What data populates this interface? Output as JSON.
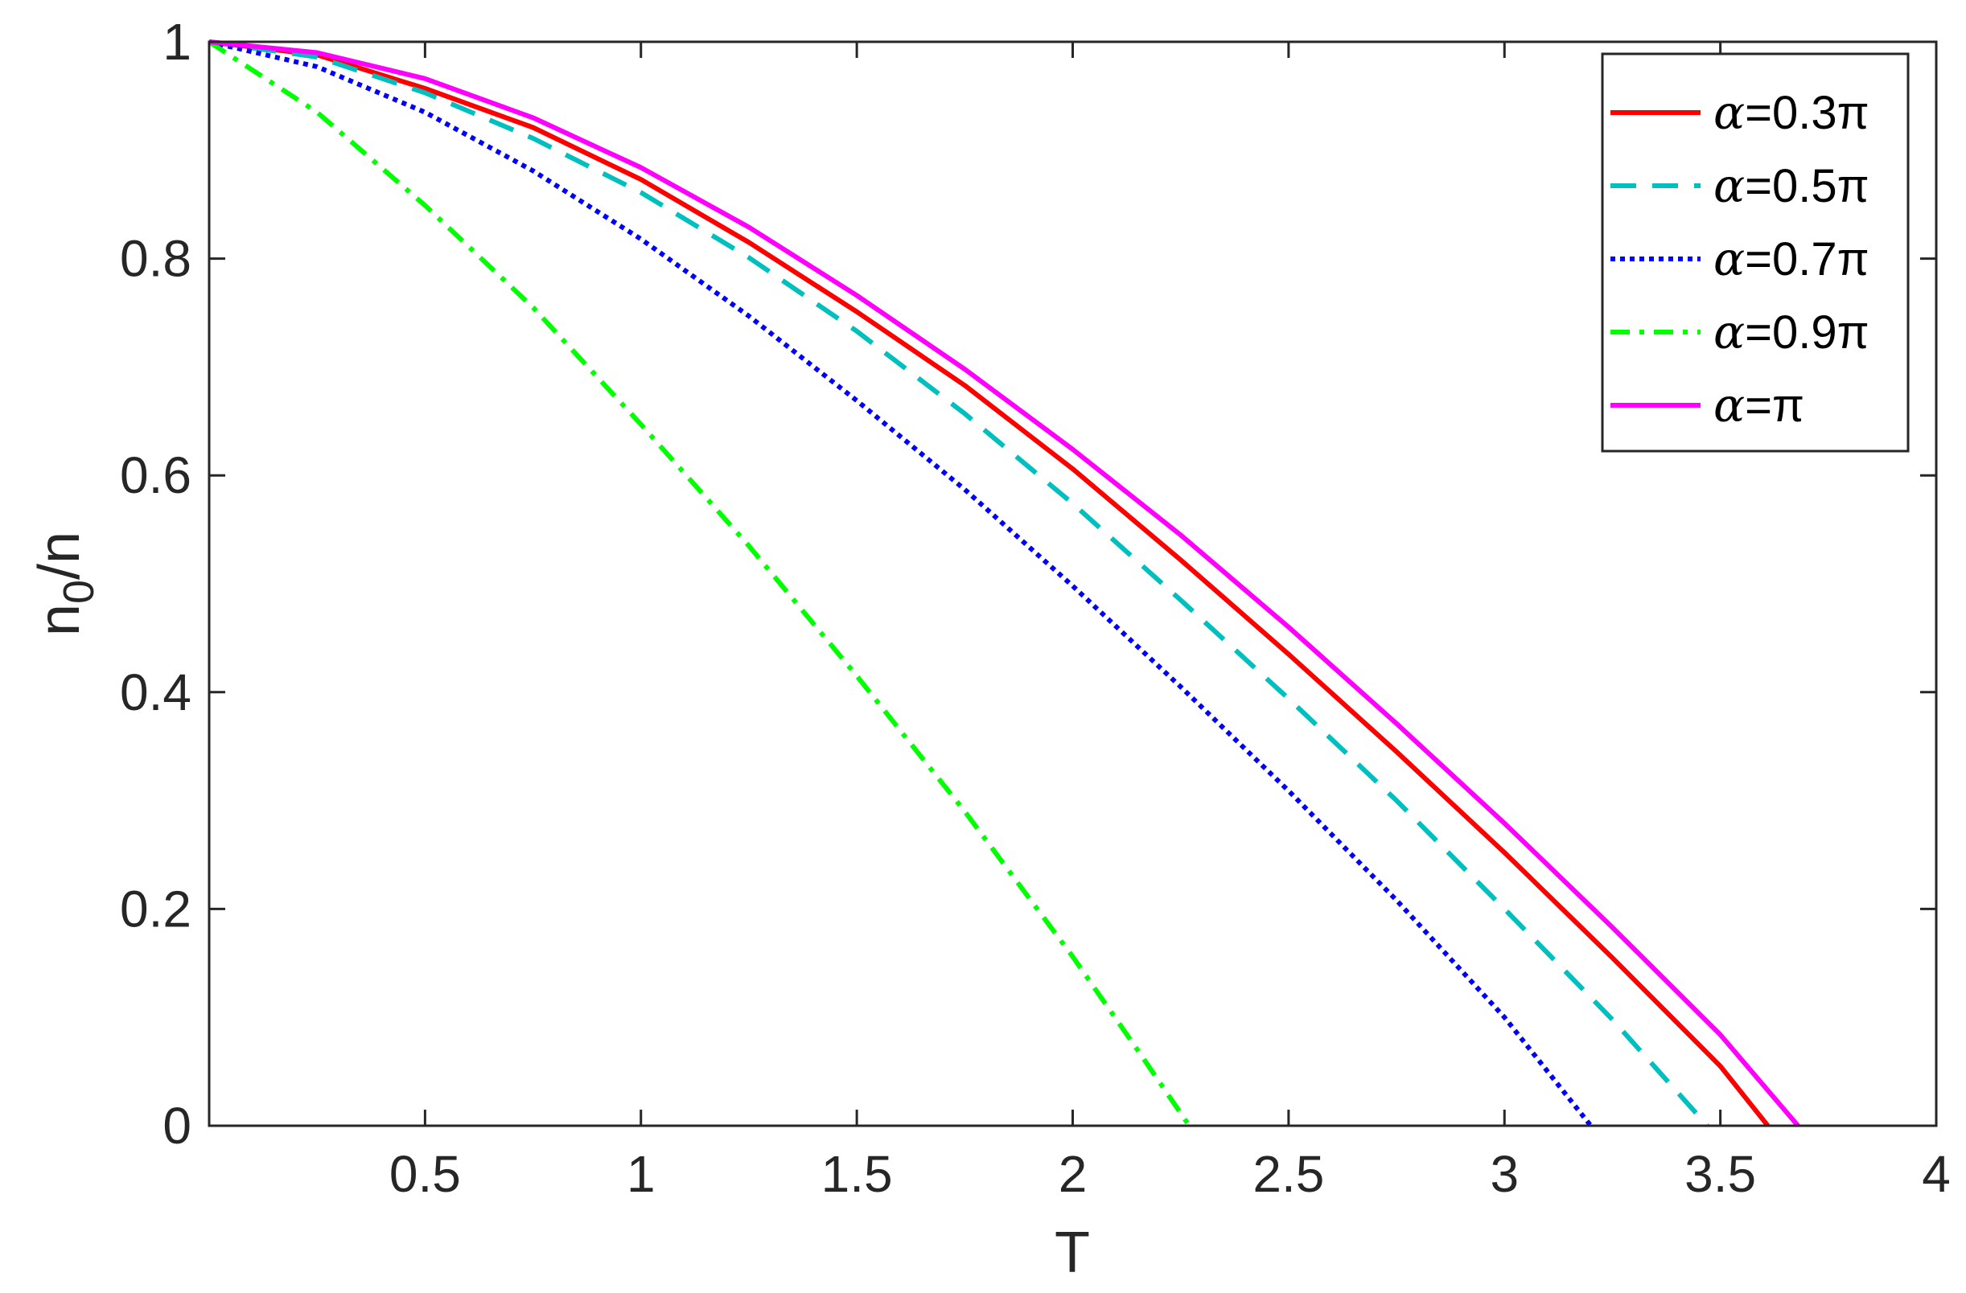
{
  "chart_data": {
    "type": "line",
    "title": "",
    "xlabel": "T",
    "ylabel": "n0/n",
    "ylabel_parts": {
      "base": "n",
      "sub": "0",
      "rest": "/n"
    },
    "xlim": [
      0,
      4
    ],
    "ylim": [
      0,
      1
    ],
    "xticks": [
      0.5,
      1,
      1.5,
      2,
      2.5,
      3,
      3.5,
      4
    ],
    "xtick_labels": [
      "0.5",
      "1",
      "1.5",
      "2",
      "2.5",
      "3",
      "3.5",
      "4"
    ],
    "yticks": [
      0,
      0.2,
      0.4,
      0.6,
      0.8,
      1
    ],
    "ytick_labels": [
      "0",
      "0.2",
      "0.4",
      "0.6",
      "0.8",
      "1"
    ],
    "grid": false,
    "legend_position": "top-right",
    "series": [
      {
        "name": "α=0.3π",
        "legend_greek": "α",
        "legend_rest": "=0.3π",
        "color": "#ff0000",
        "dash": "solid",
        "x": [
          0,
          0.25,
          0.5,
          0.75,
          1.0,
          1.25,
          1.5,
          1.75,
          2.0,
          2.25,
          2.5,
          2.75,
          3.0,
          3.25,
          3.5,
          3.61
        ],
        "y": [
          1.0,
          0.988,
          0.957,
          0.921,
          0.873,
          0.815,
          0.751,
          0.683,
          0.606,
          0.522,
          0.435,
          0.345,
          0.252,
          0.155,
          0.055,
          0.0
        ]
      },
      {
        "name": "α=0.5π",
        "legend_greek": "α",
        "legend_rest": "=0.5π",
        "color": "#00bfbf",
        "dash": "dashed",
        "x": [
          0,
          0.25,
          0.5,
          0.75,
          1.0,
          1.25,
          1.5,
          1.75,
          2.0,
          2.25,
          2.5,
          2.75,
          3.0,
          3.25,
          3.47
        ],
        "y": [
          1.0,
          0.986,
          0.953,
          0.911,
          0.861,
          0.801,
          0.733,
          0.657,
          0.574,
          0.485,
          0.394,
          0.3,
          0.2,
          0.098,
          0.0
        ]
      },
      {
        "name": "α=0.7π",
        "legend_greek": "α",
        "legend_rest": "=0.7π",
        "color": "#0000ff",
        "dash": "dotted",
        "x": [
          0,
          0.25,
          0.5,
          0.75,
          1.0,
          1.25,
          1.5,
          1.75,
          2.0,
          2.25,
          2.5,
          2.75,
          3.0,
          3.2
        ],
        "y": [
          1.0,
          0.977,
          0.935,
          0.881,
          0.818,
          0.747,
          0.669,
          0.587,
          0.498,
          0.405,
          0.309,
          0.208,
          0.1,
          0.0
        ]
      },
      {
        "name": "α=0.9π",
        "legend_greek": "α",
        "legend_rest": "=0.9π",
        "color": "#00ff00",
        "dash": "dashdot",
        "x": [
          0,
          0.25,
          0.5,
          0.75,
          1.0,
          1.25,
          1.5,
          1.75,
          2.0,
          2.15,
          2.27
        ],
        "y": [
          1.0,
          0.935,
          0.849,
          0.755,
          0.647,
          0.535,
          0.415,
          0.29,
          0.156,
          0.07,
          0.0
        ]
      },
      {
        "name": "α=π",
        "legend_greek": "α",
        "legend_rest": "=π",
        "color": "#ff00ff",
        "dash": "solid",
        "x": [
          0,
          0.25,
          0.5,
          0.75,
          1.0,
          1.25,
          1.5,
          1.75,
          2.0,
          2.25,
          2.5,
          2.75,
          3.0,
          3.25,
          3.5,
          3.68
        ],
        "y": [
          1.0,
          0.99,
          0.966,
          0.93,
          0.884,
          0.829,
          0.766,
          0.698,
          0.624,
          0.545,
          0.46,
          0.371,
          0.279,
          0.183,
          0.084,
          0.0
        ]
      }
    ]
  }
}
